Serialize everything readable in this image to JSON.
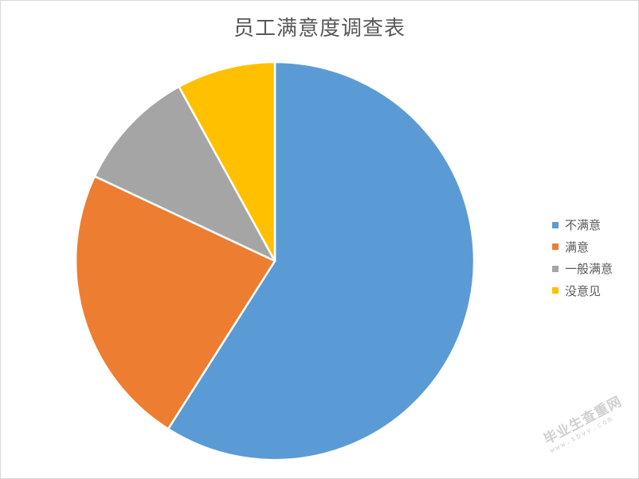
{
  "chart_data": {
    "type": "pie",
    "title": "员工满意度调查表",
    "categories": [
      "不满意",
      "满意",
      "一般满意",
      "没意见"
    ],
    "values": [
      59,
      23,
      10,
      8
    ],
    "colors": [
      "#5b9bd5",
      "#ed7d31",
      "#a5a5a5",
      "#ffc000"
    ],
    "start_angle": "12 o'clock",
    "direction": "clockwise",
    "legend": "right"
  },
  "watermark": {
    "text": "毕业生查重网",
    "url": "www.sbvv.com"
  }
}
